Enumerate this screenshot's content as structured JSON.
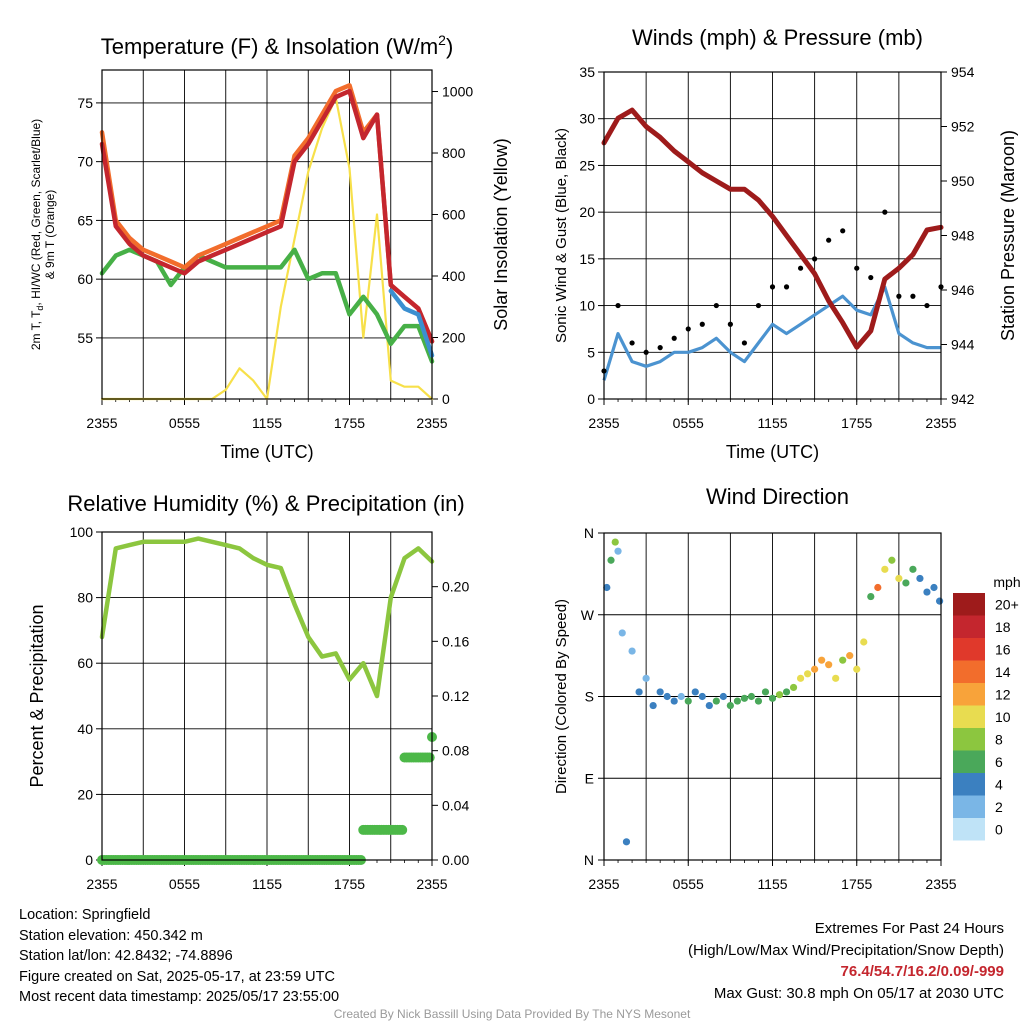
{
  "chart_data": [
    {
      "type": "line",
      "title": "Temperature (F) & Insolation (W/m²)",
      "xlabel": "Time (UTC)",
      "ylabel_left": "2m T, Td, HI/WC (Red, Green, Scarlet/Blue) & 9m T (Orange)",
      "ylabel_left_lines": [
        "2m T, T",
        "d",
        ", HI/WC (Red, Green, Scarlet/Blue)",
        "& 9m T (Orange)"
      ],
      "ylabel_right": "Solar Insolation (Yellow)",
      "x_ticks": [
        "2355",
        "0555",
        "1155",
        "1755",
        "2355"
      ],
      "y_left_ticks": [
        "55",
        "60",
        "65",
        "70",
        "75"
      ],
      "y_left_range": [
        49.8,
        77.8
      ],
      "y_right_ticks": [
        "0",
        "200",
        "400",
        "600",
        "800",
        "1000"
      ],
      "y_right_range": [
        0,
        1070
      ],
      "grid": true,
      "x": [
        0,
        1,
        2,
        3,
        4,
        5,
        6,
        7,
        8,
        9,
        10,
        11,
        12,
        13,
        14,
        15,
        16,
        17,
        18,
        19,
        20,
        21,
        22,
        23,
        24
      ],
      "series": [
        {
          "name": "Red",
          "color": "#c4262e",
          "axis": "left",
          "values": [
            71.5,
            64.5,
            63.0,
            62.0,
            61.5,
            61.0,
            60.5,
            61.5,
            62.0,
            62.5,
            63.0,
            63.5,
            64.0,
            64.5,
            70.0,
            71.5,
            73.5,
            75.5,
            76.0,
            72.0,
            74.0,
            59.5,
            58.5,
            57.5,
            54.7
          ]
        },
        {
          "name": "Orange",
          "color": "#f26d2c",
          "axis": "left",
          "values": [
            72.5,
            65.0,
            63.5,
            62.5,
            62.0,
            61.5,
            61.0,
            62.0,
            62.5,
            63.0,
            63.5,
            64.0,
            64.5,
            65.0,
            70.5,
            72.0,
            74.0,
            76.0,
            76.5,
            72.5,
            74.0,
            59.5,
            58.5,
            57.5,
            54.7
          ]
        },
        {
          "name": "Scarlet/Blue",
          "color": "#3b8fd0",
          "axis": "left",
          "values": [
            null,
            null,
            null,
            null,
            null,
            null,
            null,
            null,
            null,
            null,
            null,
            null,
            null,
            null,
            null,
            null,
            null,
            null,
            null,
            null,
            null,
            59.0,
            57.5,
            57.0,
            53.5
          ]
        },
        {
          "name": "Green",
          "color": "#47b047",
          "axis": "left",
          "values": [
            60.5,
            62.0,
            62.5,
            62.0,
            61.5,
            59.5,
            61.0,
            62.0,
            61.5,
            61.0,
            61.0,
            61.0,
            61.0,
            61.0,
            62.5,
            60.0,
            60.5,
            60.5,
            57.0,
            58.5,
            57.0,
            54.5,
            56.0,
            56.0,
            53.0
          ]
        },
        {
          "name": "Yellow",
          "color": "#f7e04a",
          "axis": "right",
          "values": [
            0,
            0,
            0,
            0,
            0,
            0,
            0,
            0,
            0,
            30,
            100,
            60,
            0,
            300,
            520,
            740,
            880,
            980,
            750,
            200,
            600,
            60,
            40,
            40,
            0
          ]
        }
      ]
    },
    {
      "type": "line",
      "title": "Winds (mph) & Pressure (mb)",
      "xlabel": "Time (UTC)",
      "ylabel_left": "Sonic Wind & Gust (Blue, Black)",
      "ylabel_right": "Station Pressure (Maroon)",
      "x_ticks": [
        "2355",
        "0555",
        "1155",
        "1755",
        "2355"
      ],
      "y_left_ticks": [
        "0",
        "5",
        "10",
        "15",
        "20",
        "25",
        "30",
        "35"
      ],
      "y_left_range": [
        0,
        35
      ],
      "y_right_ticks": [
        "942",
        "944",
        "946",
        "948",
        "950",
        "952",
        "954"
      ],
      "y_right_range": [
        942,
        954
      ],
      "grid": true,
      "x": [
        0,
        1,
        2,
        3,
        4,
        5,
        6,
        7,
        8,
        9,
        10,
        11,
        12,
        13,
        14,
        15,
        16,
        17,
        18,
        19,
        20,
        21,
        22,
        23,
        24
      ],
      "series": [
        {
          "name": "Sonic Wind",
          "color": "#4b93d0",
          "axis": "left",
          "values": [
            2,
            7,
            4,
            3.5,
            4,
            5,
            5,
            5.5,
            6.5,
            5,
            4,
            6,
            8,
            7,
            8,
            9,
            10,
            11,
            9.5,
            9,
            12,
            7,
            6,
            5.5,
            5.5
          ]
        },
        {
          "name": "Gust",
          "color": "#000000",
          "axis": "left",
          "values": [
            3,
            10,
            6,
            5,
            5.5,
            6.5,
            7.5,
            8,
            10,
            8,
            6,
            10,
            12,
            12,
            14,
            15,
            17,
            18,
            14,
            13,
            20,
            11,
            11,
            10,
            12
          ]
        },
        {
          "name": "Station Pressure",
          "color": "#9e1b1b",
          "axis": "right",
          "values": [
            951.4,
            952.3,
            952.6,
            952.0,
            951.6,
            951.1,
            950.7,
            950.3,
            950.0,
            949.7,
            949.7,
            949.3,
            948.7,
            948.0,
            947.3,
            946.6,
            945.6,
            944.8,
            943.9,
            944.5,
            946.4,
            946.8,
            947.3,
            948.2,
            948.3
          ]
        }
      ]
    },
    {
      "type": "line",
      "title": "Relative Humidity (%) & Precipitation (in)",
      "ylabel_left": "Percent & Precipitation",
      "x_ticks": [
        "2355",
        "0555",
        "1155",
        "1755",
        "2355"
      ],
      "y_left_ticks": [
        "0",
        "20",
        "40",
        "60",
        "80",
        "100"
      ],
      "y_left_range": [
        0,
        100
      ],
      "y_right_ticks": [
        "0.00",
        "0.04",
        "0.08",
        "0.12",
        "0.16",
        "0.20"
      ],
      "y_right_range": [
        0,
        0.24
      ],
      "grid": true,
      "x": [
        0,
        1,
        2,
        3,
        4,
        5,
        6,
        7,
        8,
        9,
        10,
        11,
        12,
        13,
        14,
        15,
        16,
        17,
        18,
        19,
        20,
        21,
        22,
        23,
        24
      ],
      "series": [
        {
          "name": "Relative Humidity",
          "color": "#8cc63f",
          "axis": "left",
          "values": [
            68,
            95,
            96,
            97,
            97,
            97,
            97,
            98,
            97,
            96,
            95,
            92,
            90,
            89,
            78,
            68,
            62,
            63,
            55,
            60,
            50,
            80,
            92,
            95,
            91
          ]
        },
        {
          "name": "Precipitation",
          "color": "#4cb848",
          "axis": "right",
          "values": [
            0,
            0,
            0,
            0,
            0,
            0,
            0,
            0,
            0,
            0,
            0,
            0,
            0,
            0,
            0,
            0,
            0,
            0,
            0,
            0.022,
            0.022,
            0.022,
            0.075,
            0.075,
            0.09
          ]
        }
      ]
    },
    {
      "type": "scatter",
      "title": "Wind Direction",
      "ylabel": "Direction (Colored By Speed)",
      "x_ticks": [
        "2355",
        "0555",
        "1155",
        "1755",
        "2355"
      ],
      "y_ticks": [
        "N",
        "E",
        "S",
        "W",
        "N"
      ],
      "y_range_degrees": [
        0,
        360
      ],
      "grid": true,
      "colorbar": {
        "unit": "mph",
        "labels": [
          "20+",
          "18",
          "16",
          "14",
          "12",
          "10",
          "8",
          "6",
          "4",
          "2",
          "0"
        ],
        "colors": [
          "#9e1b1b",
          "#c4262e",
          "#e0392b",
          "#f26d2c",
          "#f8a33a",
          "#e8dc50",
          "#8cc63f",
          "#4aa85a",
          "#3b80c0",
          "#7ab6e6",
          "#bfe3f7"
        ]
      },
      "x": [
        0.2,
        0.5,
        0.8,
        1.0,
        1.3,
        1.6,
        2.0,
        2.5,
        3.0,
        3.5,
        4.0,
        4.5,
        5.0,
        5.5,
        6.0,
        6.5,
        7.0,
        7.5,
        8.0,
        8.5,
        9.0,
        9.5,
        10.0,
        10.5,
        11.0,
        11.5,
        12.0,
        12.5,
        13.0,
        13.5,
        14.0,
        14.5,
        15.0,
        15.5,
        16.0,
        16.5,
        17.0,
        17.5,
        18.0,
        18.5,
        19.0,
        19.5,
        20.0,
        20.5,
        21.0,
        21.5,
        22.0,
        22.5,
        23.0,
        23.5,
        23.9
      ],
      "direction_deg": [
        300,
        330,
        350,
        340,
        250,
        20,
        230,
        185,
        200,
        170,
        185,
        180,
        175,
        180,
        175,
        185,
        180,
        170,
        175,
        180,
        170,
        175,
        178,
        180,
        175,
        185,
        178,
        182,
        185,
        190,
        200,
        205,
        210,
        220,
        215,
        200,
        220,
        225,
        210,
        240,
        290,
        300,
        320,
        330,
        310,
        305,
        320,
        310,
        295,
        300,
        285
      ],
      "speed_mph": [
        4,
        6,
        8,
        3,
        2,
        4,
        3,
        4,
        3,
        4,
        4,
        5,
        4,
        3,
        6,
        4,
        5,
        4,
        6,
        5,
        6,
        6,
        7,
        6,
        7,
        7,
        6,
        8,
        7,
        8,
        10,
        11,
        12,
        12,
        13,
        11,
        9,
        12,
        11,
        10,
        6,
        14,
        10,
        9,
        11,
        7,
        6,
        5,
        5,
        4,
        4
      ]
    }
  ],
  "info_left": [
    "Location: Springfield",
    "Station elevation: 450.342 m",
    "Station lat/lon: 42.8432; -74.8896",
    "Figure created on Sat, 2025-05-17, at 23:59 UTC",
    "Most recent data timestamp: 2025/05/17 23:55:00"
  ],
  "extremes": {
    "title": "Extremes For Past 24 Hours",
    "subtitle": "(High/Low/Max Wind/Precipitation/Snow Depth)",
    "values": "76.4/54.7/16.2/0.09/-999",
    "max_gust": "Max Gust: 30.8 mph On 05/17 at 2030 UTC"
  },
  "credit": "Created By Nick Bassill Using Data Provided By The NYS Mesonet"
}
